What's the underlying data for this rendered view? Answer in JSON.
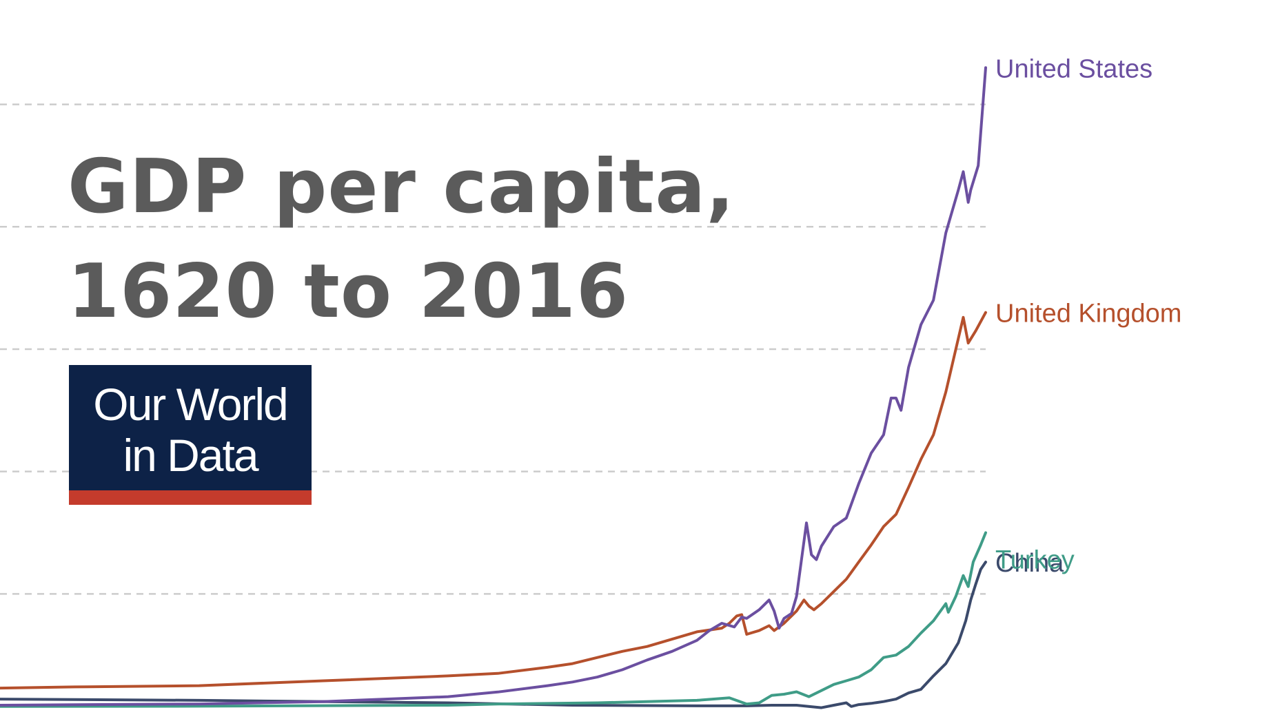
{
  "title": "GDP per capita,\n1620 to 2016",
  "logo": {
    "line1": "Our World",
    "line2": "in Data",
    "background_color": "#0d2247",
    "bar_color": "#c43b2c"
  },
  "chart_data": {
    "type": "line",
    "title": "GDP per capita,\n1620 to 2016",
    "xlabel": "",
    "ylabel": "",
    "xlim": [
      1620,
      2016
    ],
    "ylim": [
      0,
      56000
    ],
    "grid": true,
    "grid_style": "dashed horizontal",
    "legend": "inline labels at line ends",
    "series": [
      {
        "name": "United States",
        "color": "#6b4fa0",
        "points": [
          [
            1620,
            900
          ],
          [
            1650,
            940
          ],
          [
            1700,
            1000
          ],
          [
            1750,
            1200
          ],
          [
            1800,
            1600
          ],
          [
            1820,
            1980
          ],
          [
            1840,
            2500
          ],
          [
            1850,
            2800
          ],
          [
            1860,
            3200
          ],
          [
            1870,
            3800
          ],
          [
            1880,
            4600
          ],
          [
            1890,
            5300
          ],
          [
            1900,
            6200
          ],
          [
            1905,
            7000
          ],
          [
            1910,
            7600
          ],
          [
            1915,
            7300
          ],
          [
            1918,
            8100
          ],
          [
            1920,
            8000
          ],
          [
            1925,
            8700
          ],
          [
            1929,
            9500
          ],
          [
            1931,
            8600
          ],
          [
            1933,
            7200
          ],
          [
            1935,
            8000
          ],
          [
            1938,
            8400
          ],
          [
            1940,
            9800
          ],
          [
            1942,
            12800
          ],
          [
            1944,
            15800
          ],
          [
            1946,
            13200
          ],
          [
            1948,
            12800
          ],
          [
            1950,
            13900
          ],
          [
            1955,
            15500
          ],
          [
            1960,
            16200
          ],
          [
            1965,
            19000
          ],
          [
            1970,
            21500
          ],
          [
            1975,
            23000
          ],
          [
            1978,
            26000
          ],
          [
            1980,
            26000
          ],
          [
            1982,
            25000
          ],
          [
            1985,
            28500
          ],
          [
            1990,
            32000
          ],
          [
            1995,
            34000
          ],
          [
            2000,
            39500
          ],
          [
            2005,
            43000
          ],
          [
            2007,
            44500
          ],
          [
            2009,
            42000
          ],
          [
            2010,
            43000
          ],
          [
            2013,
            45000
          ],
          [
            2016,
            53000
          ]
        ]
      },
      {
        "name": "United Kingdom",
        "color": "#b5502c",
        "points": [
          [
            1620,
            2300
          ],
          [
            1650,
            2400
          ],
          [
            1700,
            2500
          ],
          [
            1750,
            2900
          ],
          [
            1800,
            3300
          ],
          [
            1820,
            3500
          ],
          [
            1840,
            4000
          ],
          [
            1850,
            4300
          ],
          [
            1860,
            4800
          ],
          [
            1870,
            5300
          ],
          [
            1880,
            5700
          ],
          [
            1890,
            6300
          ],
          [
            1900,
            6900
          ],
          [
            1910,
            7200
          ],
          [
            1913,
            7600
          ],
          [
            1916,
            8200
          ],
          [
            1918,
            8300
          ],
          [
            1920,
            6700
          ],
          [
            1925,
            7000
          ],
          [
            1929,
            7400
          ],
          [
            1931,
            7000
          ],
          [
            1935,
            7600
          ],
          [
            1940,
            8600
          ],
          [
            1943,
            9500
          ],
          [
            1945,
            9000
          ],
          [
            1947,
            8700
          ],
          [
            1950,
            9200
          ],
          [
            1955,
            10200
          ],
          [
            1960,
            11200
          ],
          [
            1965,
            12600
          ],
          [
            1970,
            14000
          ],
          [
            1975,
            15500
          ],
          [
            1980,
            16500
          ],
          [
            1985,
            18700
          ],
          [
            1990,
            21000
          ],
          [
            1995,
            23000
          ],
          [
            2000,
            26500
          ],
          [
            2004,
            30000
          ],
          [
            2007,
            32600
          ],
          [
            2009,
            30500
          ],
          [
            2012,
            31500
          ],
          [
            2016,
            33000
          ]
        ]
      },
      {
        "name": "Turkey",
        "color": "#3f9c87",
        "points": [
          [
            1620,
            800
          ],
          [
            1700,
            820
          ],
          [
            1800,
            900
          ],
          [
            1820,
            1000
          ],
          [
            1860,
            1100
          ],
          [
            1900,
            1300
          ],
          [
            1913,
            1500
          ],
          [
            1920,
            1000
          ],
          [
            1925,
            1100
          ],
          [
            1930,
            1700
          ],
          [
            1935,
            1800
          ],
          [
            1940,
            2000
          ],
          [
            1945,
            1600
          ],
          [
            1950,
            2100
          ],
          [
            1955,
            2600
          ],
          [
            1960,
            2900
          ],
          [
            1965,
            3200
          ],
          [
            1970,
            3800
          ],
          [
            1975,
            4800
          ],
          [
            1980,
            5000
          ],
          [
            1985,
            5700
          ],
          [
            1990,
            6800
          ],
          [
            1995,
            7800
          ],
          [
            2000,
            9200
          ],
          [
            2001,
            8500
          ],
          [
            2004,
            9800
          ],
          [
            2007,
            11500
          ],
          [
            2009,
            10600
          ],
          [
            2011,
            12600
          ],
          [
            2014,
            14000
          ],
          [
            2016,
            15000
          ]
        ]
      },
      {
        "name": "China",
        "color": "#3b4a6b",
        "points": [
          [
            1620,
            1400
          ],
          [
            1700,
            1300
          ],
          [
            1800,
            1100
          ],
          [
            1850,
            900
          ],
          [
            1900,
            850
          ],
          [
            1920,
            850
          ],
          [
            1930,
            900
          ],
          [
            1940,
            900
          ],
          [
            1950,
            700
          ],
          [
            1955,
            900
          ],
          [
            1960,
            1100
          ],
          [
            1962,
            800
          ],
          [
            1965,
            950
          ],
          [
            1970,
            1050
          ],
          [
            1975,
            1200
          ],
          [
            1980,
            1400
          ],
          [
            1985,
            1900
          ],
          [
            1990,
            2200
          ],
          [
            1995,
            3300
          ],
          [
            2000,
            4300
          ],
          [
            2005,
            6000
          ],
          [
            2008,
            7800
          ],
          [
            2010,
            9500
          ],
          [
            2012,
            10800
          ],
          [
            2014,
            12000
          ],
          [
            2016,
            12600
          ]
        ]
      }
    ]
  }
}
